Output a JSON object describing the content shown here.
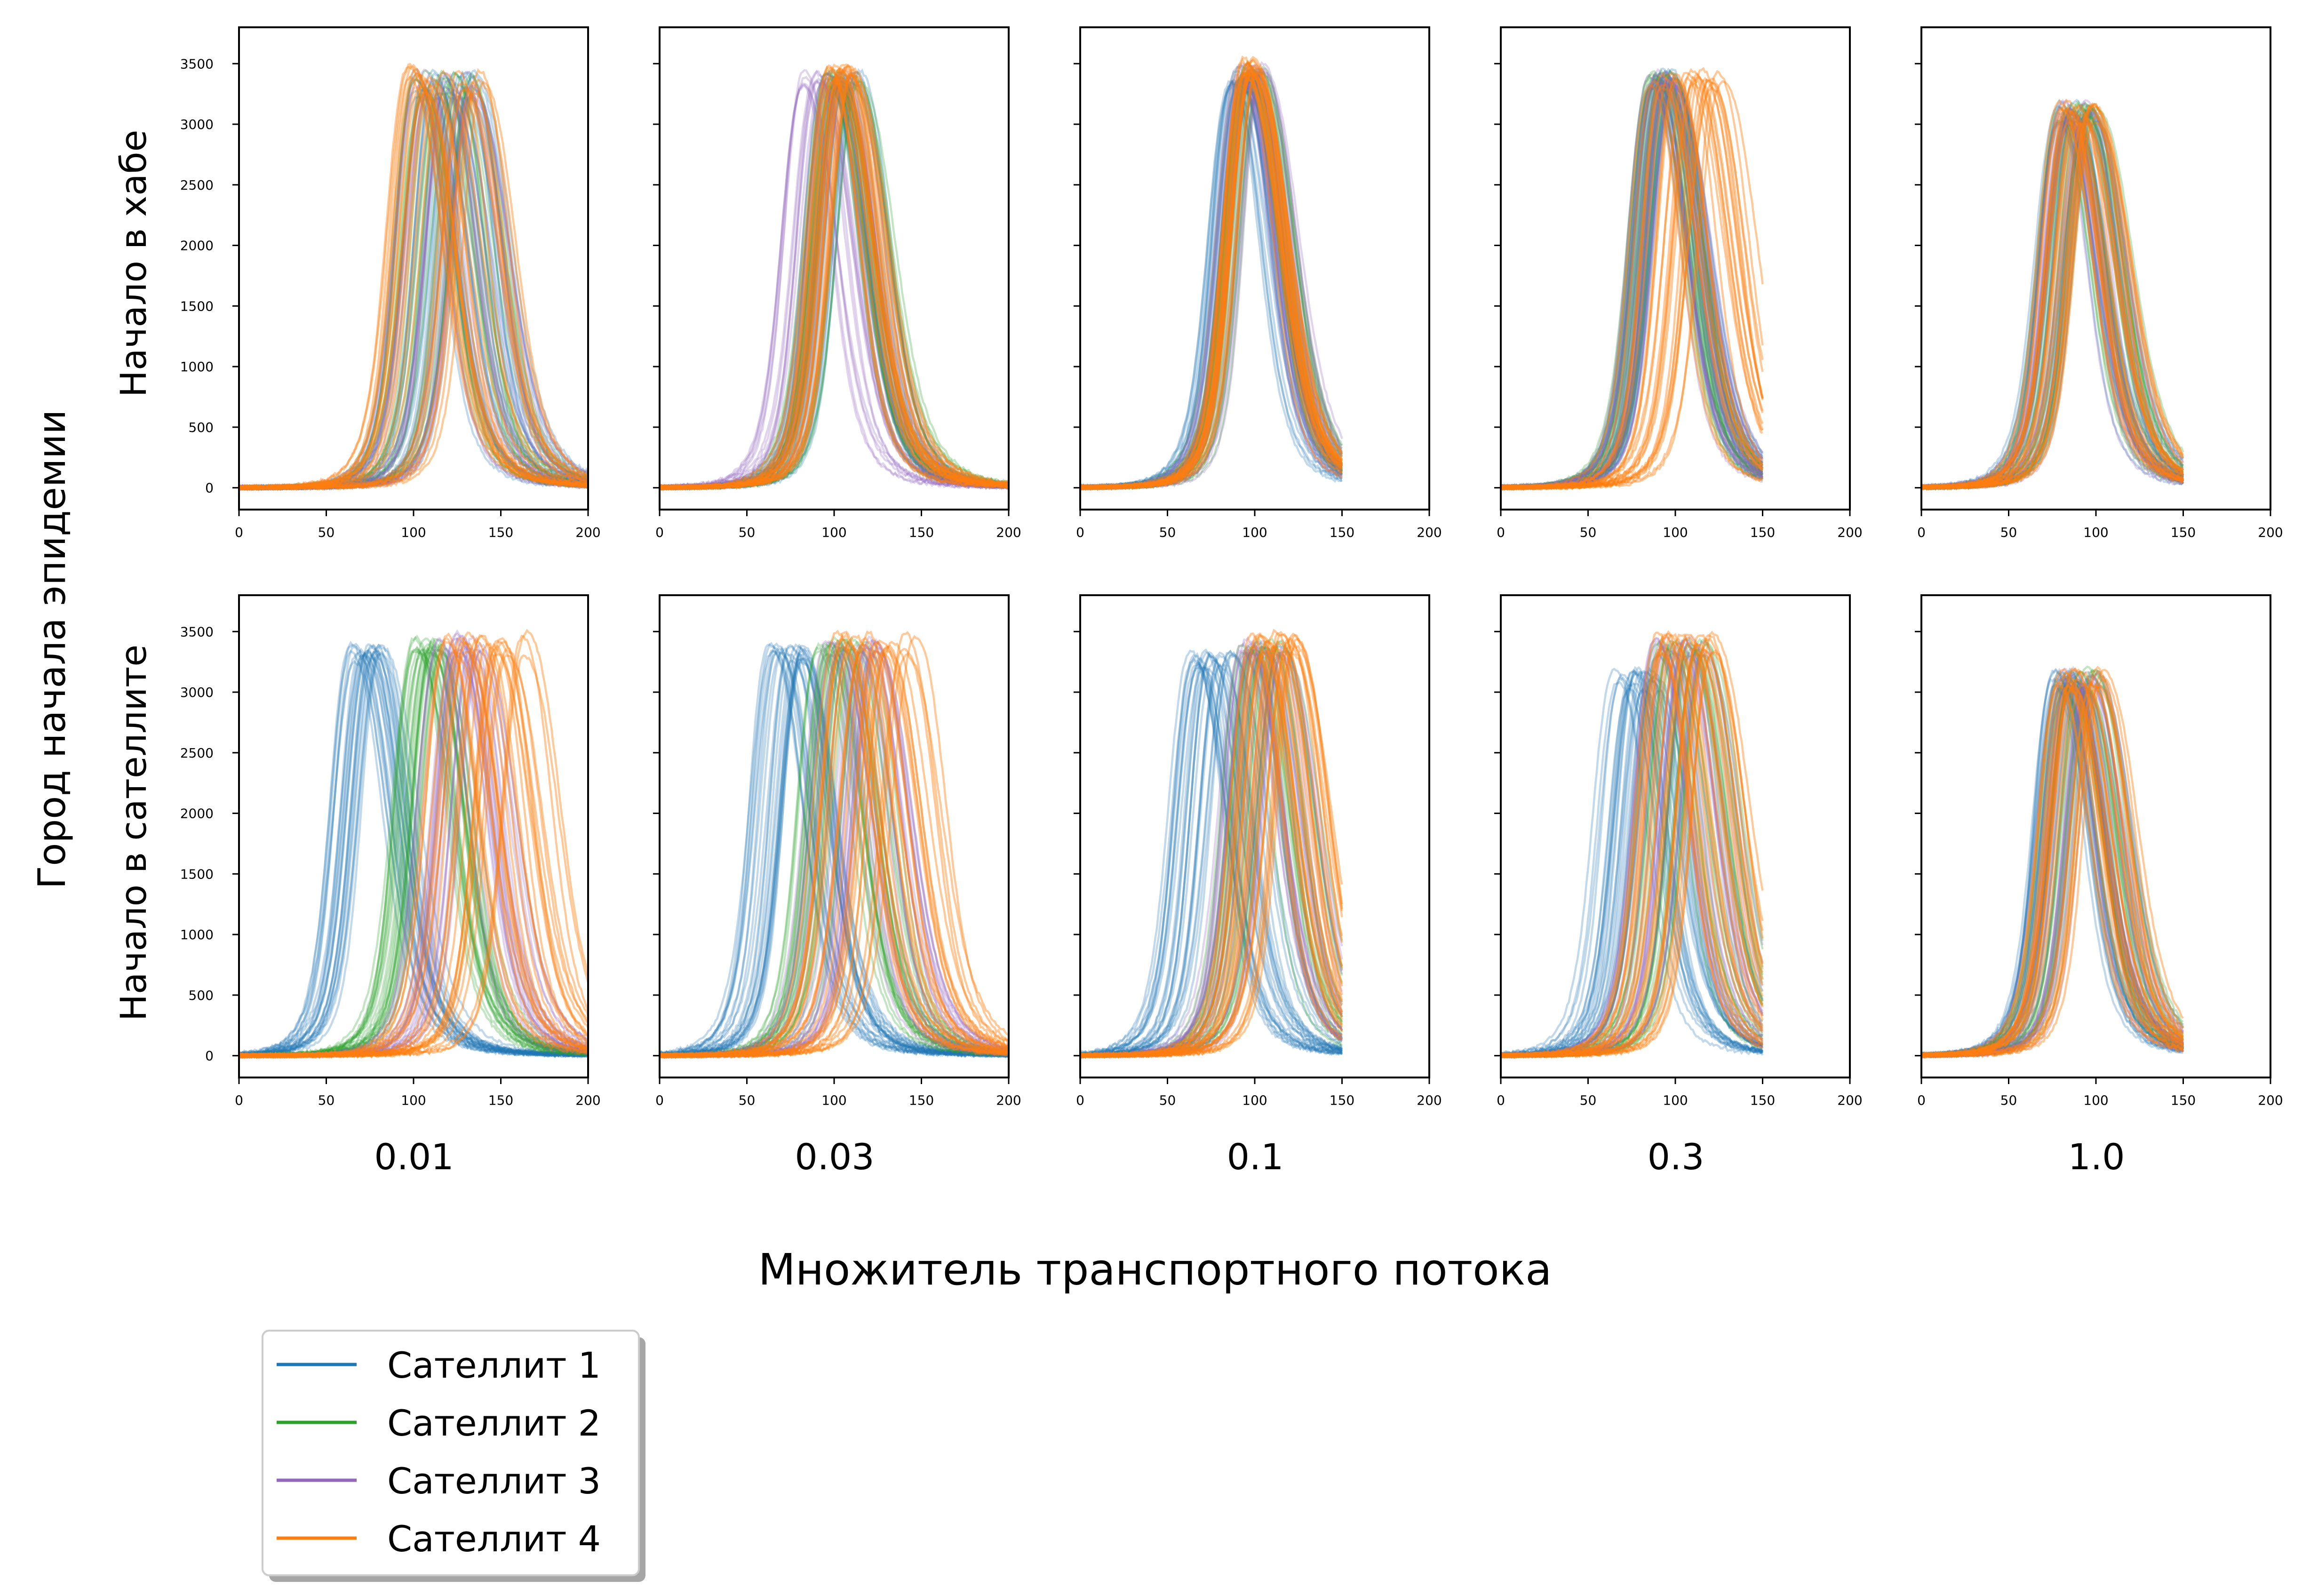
{
  "figure": {
    "y_title": "Город начала эпидемии",
    "x_title": "Множитель транспортного потока"
  },
  "chart_data": {
    "type": "line",
    "grid": false,
    "legend_position": "bottom-left",
    "row_labels": [
      "Начало в хабе",
      "Начало в сателлите"
    ],
    "column_labels": [
      "0.01",
      "0.03",
      "0.1",
      "0.3",
      "1.0"
    ],
    "xlim": [
      0,
      200
    ],
    "ylim": [
      -180,
      3800
    ],
    "x_ticks": [
      0,
      50,
      100,
      150,
      200
    ],
    "y_ticks": [
      0,
      500,
      1000,
      1500,
      2000,
      2500,
      3000,
      3500
    ],
    "legend": [
      {
        "name": "Сателлит 1",
        "color": "#1f77b4"
      },
      {
        "name": "Сателлит 2",
        "color": "#2ca02c"
      },
      {
        "name": "Сателлит 3",
        "color": "#9467bd"
      },
      {
        "name": "Сателлит 4",
        "color": "#ff7f0e"
      }
    ],
    "panels": [
      {
        "row": 0,
        "col": 0,
        "x_end": 200,
        "series": [
          {
            "name": "Сателлит 1",
            "peak_x": [
              100,
              135
            ],
            "peak_y": [
              3200,
              3450
            ]
          },
          {
            "name": "Сателлит 2",
            "peak_x": [
              100,
              135
            ],
            "peak_y": [
              3200,
              3450
            ]
          },
          {
            "name": "Сателлит 3",
            "peak_x": [
              100,
              135
            ],
            "peak_y": [
              3200,
              3450
            ]
          },
          {
            "name": "Сателлит 4",
            "peak_x": [
              95,
              140
            ],
            "peak_y": [
              3250,
              3500
            ]
          }
        ]
      },
      {
        "row": 0,
        "col": 1,
        "x_end": 200,
        "series": [
          {
            "name": "Сателлит 1",
            "peak_x": [
              95,
              115
            ],
            "peak_y": [
              3300,
              3450
            ]
          },
          {
            "name": "Сателлит 2",
            "peak_x": [
              95,
              115
            ],
            "peak_y": [
              3300,
              3450
            ]
          },
          {
            "name": "Сателлит 3",
            "peak_x": [
              82,
              110
            ],
            "peak_y": [
              3300,
              3450
            ]
          },
          {
            "name": "Сателлит 4",
            "peak_x": [
              97,
              112
            ],
            "peak_y": [
              3350,
              3500
            ]
          }
        ]
      },
      {
        "row": 0,
        "col": 2,
        "x_end": 150,
        "series": [
          {
            "name": "Сателлит 1",
            "peak_x": [
              85,
              102
            ],
            "peak_y": [
              3300,
              3450
            ]
          },
          {
            "name": "Сателлит 2",
            "peak_x": [
              90,
              105
            ],
            "peak_y": [
              3350,
              3500
            ]
          },
          {
            "name": "Сателлит 3",
            "peak_x": [
              90,
              105
            ],
            "peak_y": [
              3350,
              3500
            ]
          },
          {
            "name": "Сателлит 4",
            "peak_x": [
              92,
              102
            ],
            "peak_y": [
              3400,
              3550
            ]
          }
        ]
      },
      {
        "row": 0,
        "col": 3,
        "x_end": 150,
        "series": [
          {
            "name": "Сателлит 1",
            "peak_x": [
              85,
              100
            ],
            "peak_y": [
              3300,
              3450
            ]
          },
          {
            "name": "Сателлит 2",
            "peak_x": [
              85,
              100
            ],
            "peak_y": [
              3300,
              3450
            ]
          },
          {
            "name": "Сателлит 3",
            "peak_x": [
              85,
              100
            ],
            "peak_y": [
              3300,
              3450
            ]
          },
          {
            "name": "Сателлит 4",
            "peak_x": [
              83,
              130
            ],
            "peak_y": [
              3300,
              3450
            ]
          }
        ]
      },
      {
        "row": 0,
        "col": 4,
        "x_end": 150,
        "series": [
          {
            "name": "Сателлит 1",
            "peak_x": [
              78,
              100
            ],
            "peak_y": [
              3000,
              3200
            ]
          },
          {
            "name": "Сателлит 2",
            "peak_x": [
              78,
              100
            ],
            "peak_y": [
              3000,
              3200
            ]
          },
          {
            "name": "Сателлит 3",
            "peak_x": [
              78,
              100
            ],
            "peak_y": [
              3000,
              3200
            ]
          },
          {
            "name": "Сателлит 4",
            "peak_x": [
              78,
              100
            ],
            "peak_y": [
              3000,
              3200
            ]
          }
        ]
      },
      {
        "row": 1,
        "col": 0,
        "x_end": 200,
        "series": [
          {
            "name": "Сателлит 1",
            "peak_x": [
              62,
              82
            ],
            "peak_y": [
              3250,
              3400
            ]
          },
          {
            "name": "Сателлит 2",
            "peak_x": [
              100,
              120
            ],
            "peak_y": [
              3300,
              3450
            ]
          },
          {
            "name": "Сателлит 3",
            "peak_x": [
              112,
              140
            ],
            "peak_y": [
              3300,
              3500
            ]
          },
          {
            "name": "Сателлит 4",
            "peak_x": [
              118,
              165
            ],
            "peak_y": [
              3300,
              3500
            ]
          }
        ]
      },
      {
        "row": 1,
        "col": 1,
        "x_end": 200,
        "series": [
          {
            "name": "Сателлит 1",
            "peak_x": [
              62,
              85
            ],
            "peak_y": [
              3250,
              3400
            ]
          },
          {
            "name": "Сателлит 2",
            "peak_x": [
              90,
              120
            ],
            "peak_y": [
              3300,
              3450
            ]
          },
          {
            "name": "Сателлит 3",
            "peak_x": [
              95,
              125
            ],
            "peak_y": [
              3300,
              3450
            ]
          },
          {
            "name": "Сателлит 4",
            "peak_x": [
              100,
              148
            ],
            "peak_y": [
              3300,
              3500
            ]
          }
        ]
      },
      {
        "row": 1,
        "col": 2,
        "x_end": 150,
        "series": [
          {
            "name": "Сателлит 1",
            "peak_x": [
              62,
              88
            ],
            "peak_y": [
              3200,
              3350
            ]
          },
          {
            "name": "Сателлит 2",
            "peak_x": [
              92,
              118
            ],
            "peak_y": [
              3300,
              3450
            ]
          },
          {
            "name": "Сателлит 3",
            "peak_x": [
              92,
              118
            ],
            "peak_y": [
              3300,
              3450
            ]
          },
          {
            "name": "Сателлит 4",
            "peak_x": [
              95,
              128
            ],
            "peak_y": [
              3300,
              3500
            ]
          }
        ]
      },
      {
        "row": 1,
        "col": 3,
        "x_end": 150,
        "series": [
          {
            "name": "Сателлит 1",
            "peak_x": [
              65,
              92
            ],
            "peak_y": [
              3000,
              3200
            ]
          },
          {
            "name": "Сателлит 2",
            "peak_x": [
              88,
              118
            ],
            "peak_y": [
              3300,
              3450
            ]
          },
          {
            "name": "Сателлит 3",
            "peak_x": [
              88,
              118
            ],
            "peak_y": [
              3300,
              3450
            ]
          },
          {
            "name": "Сателлит 4",
            "peak_x": [
              88,
              122
            ],
            "peak_y": [
              3300,
              3500
            ]
          }
        ]
      },
      {
        "row": 1,
        "col": 4,
        "x_end": 150,
        "series": [
          {
            "name": "Сателлит 1",
            "peak_x": [
              75,
              92
            ],
            "peak_y": [
              3000,
              3200
            ]
          },
          {
            "name": "Сателлит 2",
            "peak_x": [
              78,
              102
            ],
            "peak_y": [
              3000,
              3200
            ]
          },
          {
            "name": "Сателлит 3",
            "peak_x": [
              78,
              102
            ],
            "peak_y": [
              3000,
              3200
            ]
          },
          {
            "name": "Сателлит 4",
            "peak_x": [
              78,
              105
            ],
            "peak_y": [
              3000,
              3200
            ]
          }
        ]
      }
    ]
  }
}
